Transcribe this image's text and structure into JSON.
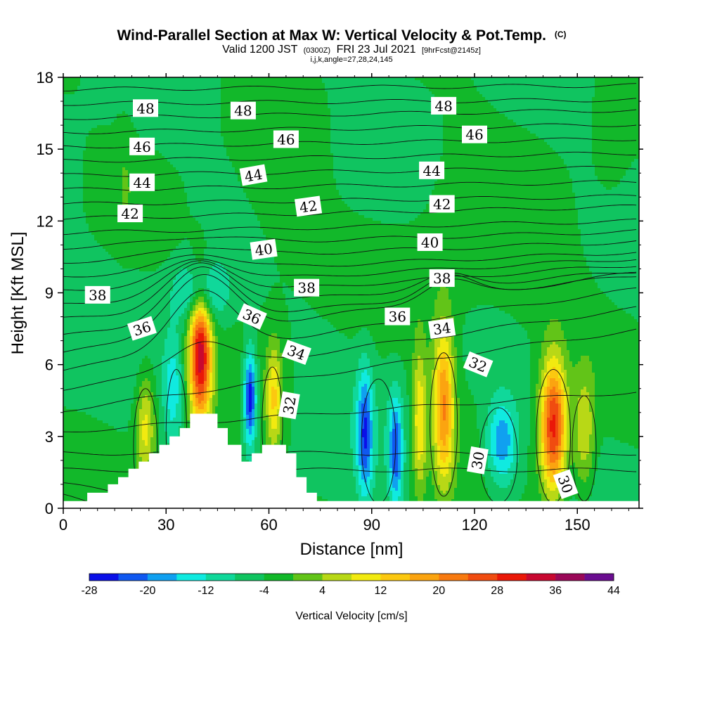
{
  "chart_data": {
    "type": "heatmap",
    "title": "Wind-Parallel Section at Max W: Vertical Velocity & Pot.Temp.",
    "title_mark": "(C)",
    "subtitle_main": "Valid 1200 JST",
    "subtitle_utc": "(0300Z)",
    "subtitle_date": "FRI 23 Jul 2021",
    "subtitle_fcst": "[9hrFcst@2145z]",
    "subtitle_line2": "i,j,k,angle=27,28,24,145",
    "xlabel": "Distance [nm]",
    "ylabel": "Height [Kft MSL]",
    "xlim": [
      0,
      168
    ],
    "ylim": [
      0,
      18
    ],
    "x_ticks": [
      "0",
      "30",
      "60",
      "90",
      "120",
      "150"
    ],
    "y_ticks": [
      "0",
      "3",
      "6",
      "9",
      "12",
      "15",
      "18"
    ],
    "colorbar": {
      "label": "Vertical Velocity [cm/s]",
      "levels": [
        -28,
        -24,
        -20,
        -16,
        -12,
        -8,
        -4,
        0,
        4,
        8,
        12,
        16,
        20,
        24,
        28,
        32,
        36,
        40,
        44
      ],
      "tick_labels": [
        "-28",
        "-20",
        "-12",
        "-4",
        "4",
        "12",
        "20",
        "28",
        "36",
        "44"
      ],
      "colors": [
        "#0a10e8",
        "#1058f0",
        "#10a0f0",
        "#10eae0",
        "#10d89a",
        "#10c460",
        "#12b82a",
        "#62c418",
        "#b8d816",
        "#f2ea10",
        "#fcc810",
        "#fba410",
        "#f87a10",
        "#f04c10",
        "#ea1808",
        "#c80830",
        "#9a0858",
        "#6a0c90"
      ]
    },
    "contour_labels": [
      {
        "text": "48",
        "x": 24,
        "y": 16.7,
        "rot": 0
      },
      {
        "text": "48",
        "x": 52.5,
        "y": 16.6,
        "rot": 0
      },
      {
        "text": "48",
        "x": 111,
        "y": 16.8,
        "rot": 0
      },
      {
        "text": "46",
        "x": 23,
        "y": 15.1,
        "rot": 0
      },
      {
        "text": "46",
        "x": 65,
        "y": 15.4,
        "rot": 0
      },
      {
        "text": "46",
        "x": 120,
        "y": 15.6,
        "rot": 0
      },
      {
        "text": "44",
        "x": 23,
        "y": 13.6,
        "rot": 0
      },
      {
        "text": "44",
        "x": 55.5,
        "y": 13.9,
        "rot": -10
      },
      {
        "text": "44",
        "x": 107.5,
        "y": 14.1,
        "rot": 0
      },
      {
        "text": "42",
        "x": 19.5,
        "y": 12.3,
        "rot": 0
      },
      {
        "text": "42",
        "x": 71.5,
        "y": 12.6,
        "rot": -8
      },
      {
        "text": "42",
        "x": 110.5,
        "y": 12.7,
        "rot": 0
      },
      {
        "text": "40",
        "x": 58.5,
        "y": 10.8,
        "rot": -8
      },
      {
        "text": "40",
        "x": 107,
        "y": 11.1,
        "rot": 0
      },
      {
        "text": "38",
        "x": 10,
        "y": 8.9,
        "rot": 0
      },
      {
        "text": "38",
        "x": 71,
        "y": 9.2,
        "rot": 0
      },
      {
        "text": "38",
        "x": 110.5,
        "y": 9.6,
        "rot": 0
      },
      {
        "text": "36",
        "x": 23,
        "y": 7.5,
        "rot": -18
      },
      {
        "text": "36",
        "x": 55,
        "y": 8.0,
        "rot": 24
      },
      {
        "text": "36",
        "x": 97.5,
        "y": 8.0,
        "rot": 0
      },
      {
        "text": "34",
        "x": 68,
        "y": 6.5,
        "rot": 20
      },
      {
        "text": "34",
        "x": 110.5,
        "y": 7.5,
        "rot": -8
      },
      {
        "text": "32",
        "x": 66,
        "y": 4.3,
        "rot": -80
      },
      {
        "text": "32",
        "x": 121,
        "y": 6.0,
        "rot": 22
      },
      {
        "text": "30",
        "x": 121,
        "y": 2.0,
        "rot": -80
      },
      {
        "text": "30",
        "x": 146.5,
        "y": 1.0,
        "rot": 70
      }
    ],
    "terrain": [
      [
        0,
        0.3
      ],
      [
        4,
        0.3
      ],
      [
        7,
        0.3
      ],
      [
        7,
        0.65
      ],
      [
        13,
        0.65
      ],
      [
        13,
        1.0
      ],
      [
        16,
        1.0
      ],
      [
        16,
        1.3
      ],
      [
        19,
        1.3
      ],
      [
        19,
        1.65
      ],
      [
        22,
        1.65
      ],
      [
        22,
        1.95
      ],
      [
        25,
        1.95
      ],
      [
        25,
        2.3
      ],
      [
        28,
        2.3
      ],
      [
        28,
        2.65
      ],
      [
        31,
        2.65
      ],
      [
        31,
        3.0
      ],
      [
        34,
        3.0
      ],
      [
        34,
        3.35
      ],
      [
        37,
        3.35
      ],
      [
        37,
        3.95
      ],
      [
        45,
        3.95
      ],
      [
        45,
        3.35
      ],
      [
        48,
        3.35
      ],
      [
        48,
        2.65
      ],
      [
        52,
        2.65
      ],
      [
        52,
        1.95
      ],
      [
        55,
        1.95
      ],
      [
        55,
        2.3
      ],
      [
        58,
        2.3
      ],
      [
        58,
        2.65
      ],
      [
        65,
        2.65
      ],
      [
        65,
        2.3
      ],
      [
        68,
        2.3
      ],
      [
        68,
        1.3
      ],
      [
        71,
        1.3
      ],
      [
        71,
        0.65
      ],
      [
        74,
        0.65
      ],
      [
        74,
        0.3
      ],
      [
        168,
        0.3
      ]
    ],
    "isentropes": [
      {
        "a": 0.55,
        "b": -0.05,
        "dips": [],
        "hills": []
      },
      {
        "a": 1.0,
        "b": -0.02,
        "dips": [],
        "hills": []
      },
      {
        "a": 1.6,
        "b": 0.0,
        "dips": [],
        "hills": []
      },
      {
        "a": 2.3,
        "b": 0.0,
        "dips": [],
        "hills": []
      },
      {
        "a": 3.2,
        "b": 0.01,
        "dips": [],
        "hills": []
      },
      {
        "a": 4.1,
        "b": 0.02,
        "dips": [],
        "hills": []
      },
      {
        "a": 5.0,
        "b": 0.02,
        "dips": [],
        "hills": [
          [
            40,
            1.2,
            12
          ]
        ]
      },
      {
        "a": 5.8,
        "b": 0.02,
        "dips": [],
        "hills": [
          [
            40,
            2.5,
            13
          ]
        ]
      },
      {
        "a": 6.5,
        "b": 0.02,
        "dips": [],
        "hills": [
          [
            40,
            2.4,
            14
          ],
          [
            112,
            0.8,
            10
          ]
        ]
      },
      {
        "a": 7.2,
        "b": 0.015,
        "dips": [],
        "hills": [
          [
            40,
            2.2,
            14
          ],
          [
            112,
            0.8,
            10
          ]
        ]
      },
      {
        "a": 7.9,
        "b": 0.012,
        "dips": [],
        "hills": [
          [
            40,
            1.8,
            14
          ],
          [
            112,
            0.5,
            10
          ]
        ]
      },
      {
        "a": 8.5,
        "b": 0.01,
        "dips": [],
        "hills": [
          [
            40,
            1.4,
            14
          ]
        ]
      },
      {
        "a": 9.1,
        "b": 0.008,
        "dips": [],
        "hills": [
          [
            40,
            1.0,
            14
          ]
        ]
      },
      {
        "a": 9.7,
        "b": 0.006,
        "dips": [],
        "hills": [
          [
            40,
            0.7,
            14
          ]
        ]
      },
      {
        "a": 10.3,
        "b": 0.005,
        "dips": [],
        "hills": [
          [
            40,
            0.45,
            15
          ]
        ]
      },
      {
        "a": 10.9,
        "b": 0.004,
        "dips": [],
        "hills": [
          [
            40,
            0.3,
            16
          ]
        ]
      },
      {
        "a": 11.5,
        "b": 0.003,
        "dips": [],
        "hills": []
      },
      {
        "a": 12.1,
        "b": 0.003,
        "dips": [],
        "hills": []
      },
      {
        "a": 12.7,
        "b": 0.002,
        "dips": [],
        "hills": []
      },
      {
        "a": 13.3,
        "b": 0.002,
        "dips": [],
        "hills": []
      },
      {
        "a": 13.9,
        "b": 0.002,
        "dips": [],
        "hills": []
      },
      {
        "a": 14.5,
        "b": 0.002,
        "dips": [],
        "hills": []
      },
      {
        "a": 15.1,
        "b": 0.002,
        "dips": [],
        "hills": []
      },
      {
        "a": 15.7,
        "b": 0.002,
        "dips": [],
        "hills": []
      },
      {
        "a": 16.3,
        "b": 0.002,
        "dips": [],
        "hills": []
      },
      {
        "a": 16.9,
        "b": 0.001,
        "dips": [],
        "hills": []
      },
      {
        "a": 17.5,
        "b": 0.001,
        "dips": [],
        "hills": []
      }
    ],
    "cells": [
      {
        "x": 40,
        "y": 6.4,
        "sx": 2.3,
        "sy": 2.0,
        "w": 38
      },
      {
        "x": 54.5,
        "y": 4.6,
        "sx": 1.3,
        "sy": 1.4,
        "w": -24
      },
      {
        "x": 61.5,
        "y": 4.6,
        "sx": 1.6,
        "sy": 1.6,
        "w": 16
      },
      {
        "x": 24,
        "y": 3.4,
        "sx": 2.0,
        "sy": 1.6,
        "w": 14
      },
      {
        "x": 32,
        "y": 5.0,
        "sx": 2.0,
        "sy": 1.6,
        "w": -10
      },
      {
        "x": 88,
        "y": 3.1,
        "sx": 1.6,
        "sy": 1.9,
        "w": -18
      },
      {
        "x": 97,
        "y": 2.4,
        "sx": 1.4,
        "sy": 1.6,
        "w": -18
      },
      {
        "x": 104,
        "y": 3.6,
        "sx": 1.5,
        "sy": 2.2,
        "w": 16
      },
      {
        "x": 111,
        "y": 4.3,
        "sx": 2.2,
        "sy": 2.4,
        "w": 24
      },
      {
        "x": 128,
        "y": 2.7,
        "sx": 3.2,
        "sy": 1.3,
        "w": -16
      },
      {
        "x": 143,
        "y": 3.4,
        "sx": 2.7,
        "sy": 2.0,
        "w": 34
      },
      {
        "x": 152,
        "y": 3.1,
        "sx": 2.2,
        "sy": 1.8,
        "w": 12
      },
      {
        "x": 62,
        "y": 12.0,
        "sx": 9.0,
        "sy": 3.0,
        "w": 3.5
      },
      {
        "x": 114,
        "y": 11.5,
        "sx": 10.0,
        "sy": 3.5,
        "w": 2.5
      },
      {
        "x": 135,
        "y": 9.0,
        "sx": 12.0,
        "sy": 2.5,
        "w": 3.0
      },
      {
        "x": 160,
        "y": 15.0,
        "sx": 4.0,
        "sy": 2.0,
        "w": 3.0
      },
      {
        "x": 18,
        "y": 14.0,
        "sx": 2.0,
        "sy": 2.0,
        "w": 2.5
      },
      {
        "x": 40,
        "y": 9.0,
        "sx": 5.0,
        "sy": 0.9,
        "w": -14
      }
    ]
  }
}
